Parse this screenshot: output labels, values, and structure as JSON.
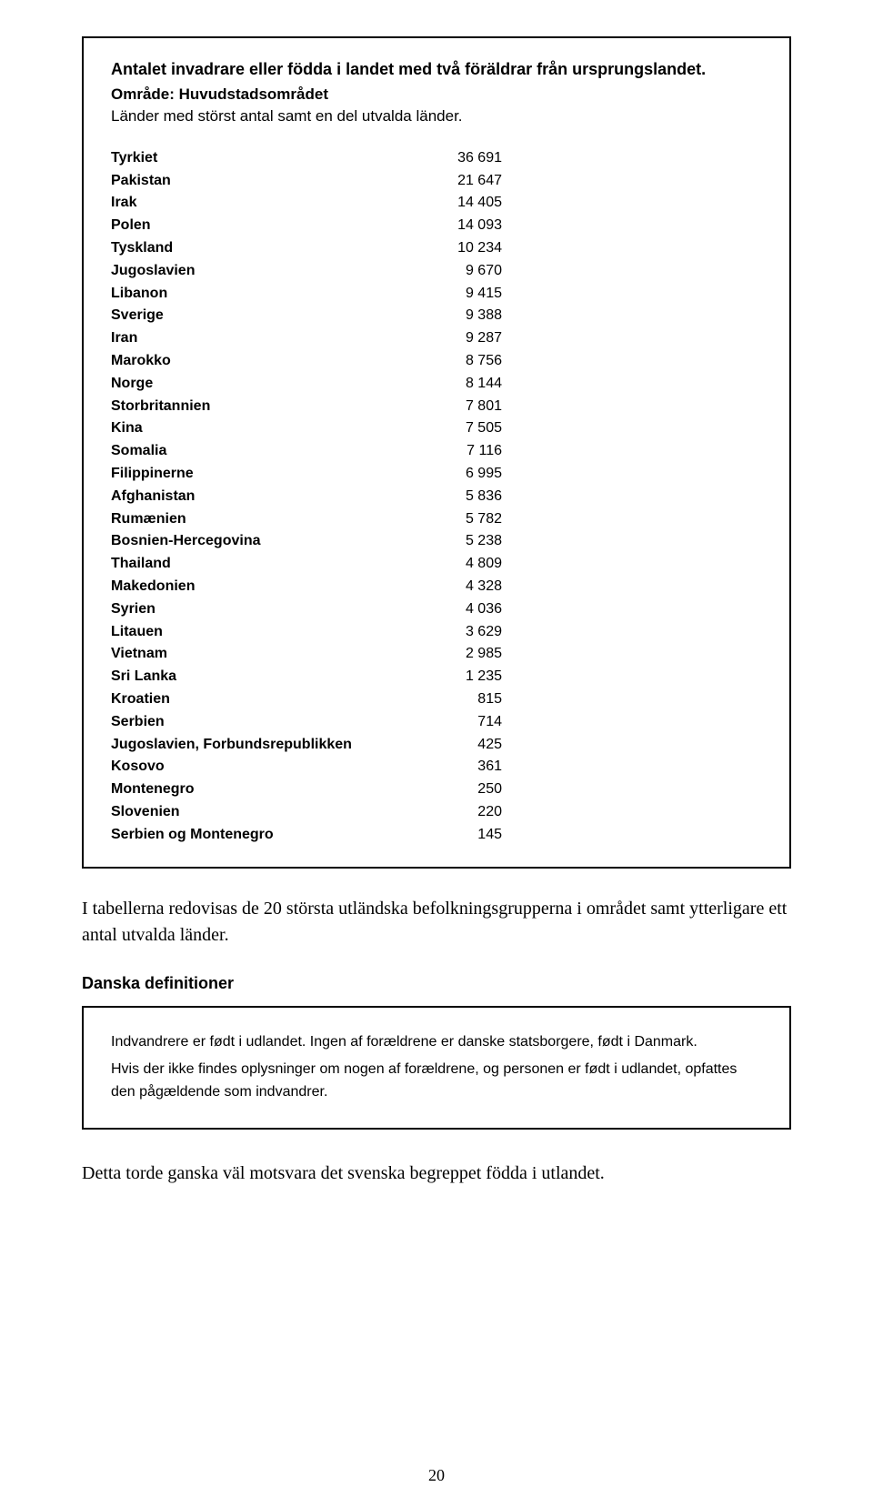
{
  "box1": {
    "heading": "Antalet invadrare eller födda i landet med två föräldrar från ursprungslandet.",
    "subheading": "Område: Huvudstadsområdet",
    "subheading2": "Länder med störst antal samt en del utvalda länder.",
    "rows": [
      {
        "label": "Tyrkiet",
        "value": "36 691"
      },
      {
        "label": "Pakistan",
        "value": "21 647"
      },
      {
        "label": "Irak",
        "value": "14 405"
      },
      {
        "label": "Polen",
        "value": "14 093"
      },
      {
        "label": "Tyskland",
        "value": "10 234"
      },
      {
        "label": "Jugoslavien",
        "value": "9 670"
      },
      {
        "label": "Libanon",
        "value": "9 415"
      },
      {
        "label": "Sverige",
        "value": "9 388"
      },
      {
        "label": "Iran",
        "value": "9 287"
      },
      {
        "label": "Marokko",
        "value": "8 756"
      },
      {
        "label": "Norge",
        "value": "8 144"
      },
      {
        "label": "Storbritannien",
        "value": "7 801"
      },
      {
        "label": "Kina",
        "value": "7 505"
      },
      {
        "label": "Somalia",
        "value": "7 116"
      },
      {
        "label": "Filippinerne",
        "value": "6 995"
      },
      {
        "label": "Afghanistan",
        "value": "5 836"
      },
      {
        "label": "Rumænien",
        "value": "5 782"
      },
      {
        "label": "Bosnien-Hercegovina",
        "value": "5 238"
      },
      {
        "label": "Thailand",
        "value": "4 809"
      },
      {
        "label": "Makedonien",
        "value": "4 328"
      },
      {
        "label": "Syrien",
        "value": "4 036"
      },
      {
        "label": "Litauen",
        "value": "3 629"
      },
      {
        "label": "Vietnam",
        "value": "2 985"
      },
      {
        "label": "Sri Lanka",
        "value": "1 235"
      },
      {
        "label": "Kroatien",
        "value": "815"
      },
      {
        "label": "Serbien",
        "value": "714"
      },
      {
        "label": "Jugoslavien, Forbundsrepublikken",
        "value": "425"
      },
      {
        "label": "Kosovo",
        "value": "361"
      },
      {
        "label": "Montenegro",
        "value": "250"
      },
      {
        "label": "Slovenien",
        "value": "220"
      },
      {
        "label": "Serbien og Montenegro",
        "value": "145"
      }
    ]
  },
  "para1": "I tabellerna redovisas de 20 största utländska befolkningsgrupperna i området samt ytterligare ett antal utvalda länder.",
  "section_heading": "Danska definitioner",
  "def_box": {
    "line1": "Indvandrere er født i udlandet. Ingen af forældrene er danske statsborgere, født i Danmark.",
    "line2": "Hvis der ikke findes oplysninger om nogen af forældrene, og personen er født i udlandet, opfattes den pågældende som indvandrer."
  },
  "para2": "Detta torde ganska väl motsvara det svenska begreppet födda i utlandet.",
  "page_number": "20"
}
